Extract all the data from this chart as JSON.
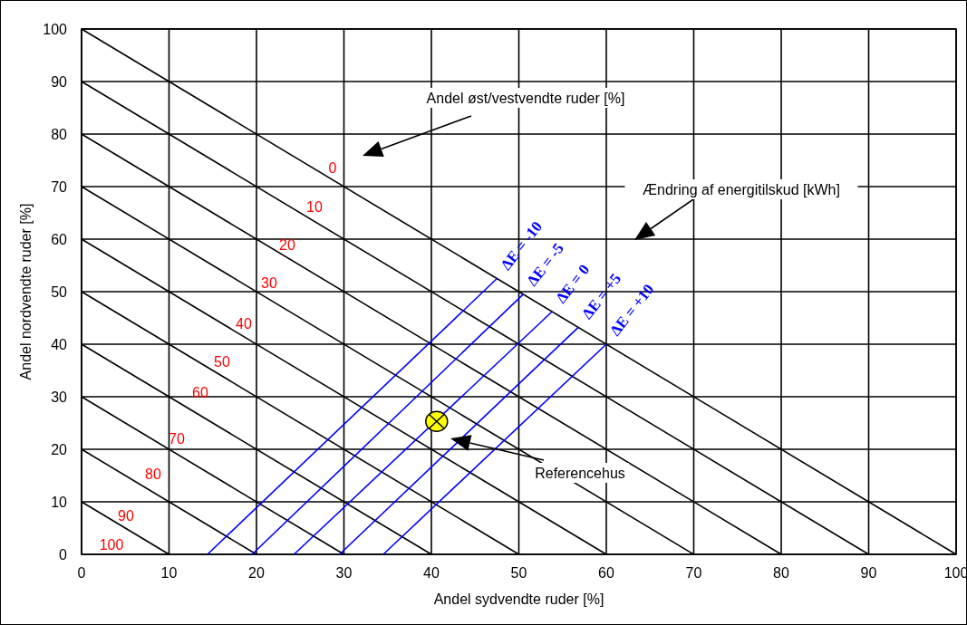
{
  "chart_data": {
    "type": "line",
    "xlabel": "Andel sydvendte ruder [%]",
    "ylabel": "Andel nordvendte ruder [%]",
    "xlim": [
      0,
      100
    ],
    "ylim": [
      0,
      100
    ],
    "xticks": [
      0,
      10,
      20,
      30,
      40,
      50,
      60,
      70,
      80,
      90,
      100
    ],
    "yticks": [
      0,
      10,
      20,
      30,
      40,
      50,
      60,
      70,
      80,
      90,
      100
    ],
    "grid": true,
    "marker": "none",
    "series": [
      {
        "color": "#000000",
        "x": [
          0,
          10
        ],
        "values": [
          10,
          0
        ]
      },
      {
        "color": "#000000",
        "x": [
          0,
          20
        ],
        "values": [
          20,
          0
        ]
      },
      {
        "color": "#000000",
        "x": [
          0,
          30
        ],
        "values": [
          30,
          0
        ]
      },
      {
        "color": "#000000",
        "x": [
          0,
          40
        ],
        "values": [
          40,
          0
        ]
      },
      {
        "color": "#000000",
        "x": [
          0,
          50
        ],
        "values": [
          50,
          0
        ]
      },
      {
        "color": "#000000",
        "x": [
          0,
          60
        ],
        "values": [
          60,
          0
        ]
      },
      {
        "color": "#000000",
        "x": [
          0,
          70
        ],
        "values": [
          70,
          0
        ]
      },
      {
        "color": "#000000",
        "x": [
          0,
          80
        ],
        "values": [
          80,
          0
        ]
      },
      {
        "color": "#000000",
        "x": [
          0,
          90
        ],
        "values": [
          90,
          0
        ]
      },
      {
        "color": "#000000",
        "x": [
          0,
          100
        ],
        "values": [
          100,
          0
        ]
      },
      {
        "name": "ΔE = -10",
        "color": "#0000ff",
        "x": [
          14.4,
          47.5
        ],
        "values": [
          0,
          52.5
        ]
      },
      {
        "name": "ΔE = -5",
        "color": "#0000ff",
        "x": [
          19.5,
          50.5
        ],
        "values": [
          0,
          49.5
        ]
      },
      {
        "name": "ΔE = 0",
        "color": "#0000ff",
        "x": [
          24.3,
          53.8
        ],
        "values": [
          0,
          46.2
        ]
      },
      {
        "name": "ΔE = +5",
        "color": "#0000ff",
        "x": [
          29.5,
          56.8
        ],
        "values": [
          0,
          43.2
        ]
      },
      {
        "name": "ΔE = +10",
        "color": "#0000ff",
        "x": [
          34.5,
          60
        ],
        "values": [
          0,
          40
        ]
      },
      {
        "type": "scatter",
        "marker": "circle",
        "color": "#ffff00",
        "x": [
          40.6
        ],
        "values": [
          25.3
        ]
      }
    ],
    "annotations": [
      "Andel øst/vestvendte ruder [%]",
      "Ændring af energitilskud [kWh]",
      "Referencehus",
      "0",
      "10",
      "20",
      "30",
      "40",
      "50",
      "60",
      "70",
      "80",
      "90",
      "100"
    ]
  }
}
